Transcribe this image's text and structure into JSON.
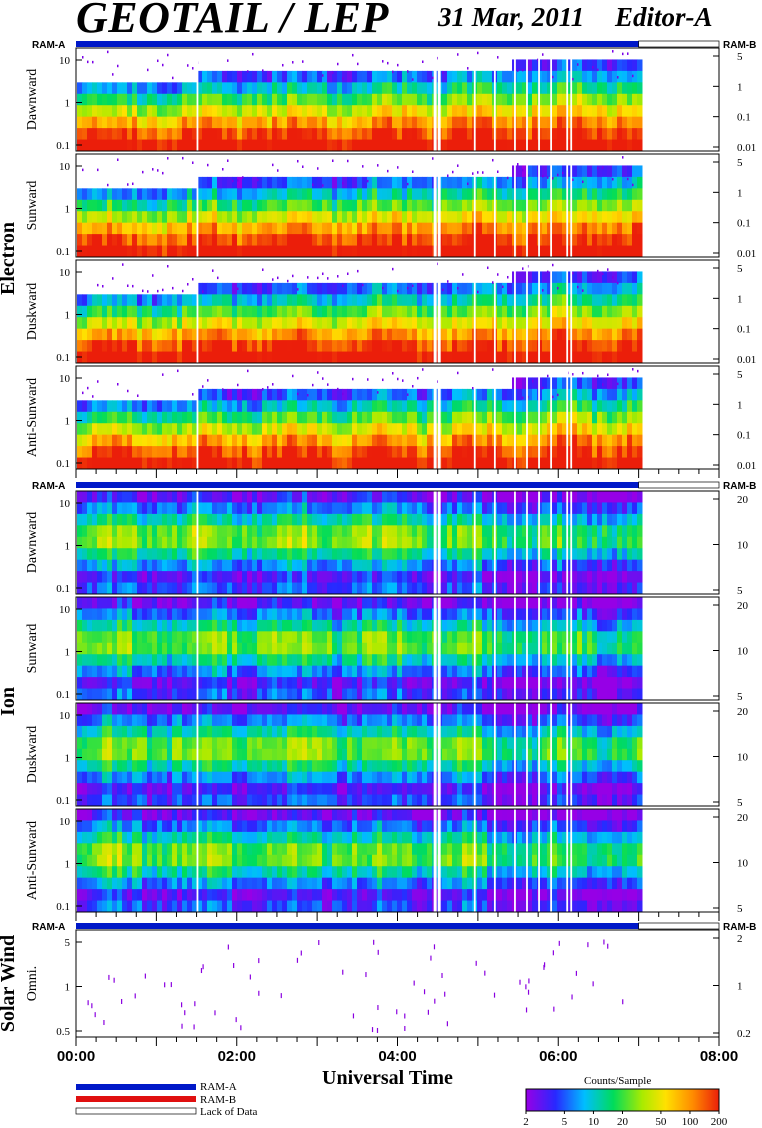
{
  "header": {
    "title": "GEOTAIL / LEP",
    "date": "31 Mar, 2011",
    "editor": "Editor-A"
  },
  "xaxis": {
    "label": "Universal Time",
    "ticks": [
      "00:00",
      "02:00",
      "04:00",
      "06:00",
      "08:00"
    ],
    "range_hours": [
      0,
      8
    ],
    "data_end_hour": 7.0
  },
  "legend": {
    "items": [
      {
        "label": "RAM-A",
        "color": "#0018c8"
      },
      {
        "label": "RAM-B",
        "color": "#e01010"
      },
      {
        "label": "Lack of Data",
        "color": "#ffffff"
      }
    ]
  },
  "colorbar": {
    "title": "Counts/Sample",
    "ticks": [
      "2",
      "5",
      "10",
      "20",
      "50",
      "100",
      "200"
    ]
  },
  "chart_data": [
    {
      "type": "heatmap",
      "group": "Electron",
      "ram_left": "RAM-A",
      "ram_right": "RAM-B",
      "panels": [
        {
          "name": "Dawnward",
          "left_ticks": [
            "10",
            "1",
            "0.1"
          ],
          "right_ticks": [
            "5",
            "1",
            "0.1",
            "0.01"
          ]
        },
        {
          "name": "Sunward",
          "left_ticks": [
            "10",
            "1",
            "0.1"
          ],
          "right_ticks": [
            "5",
            "1",
            "0.1",
            "0.01"
          ]
        },
        {
          "name": "Duskward",
          "left_ticks": [
            "10",
            "1",
            "0.1"
          ],
          "right_ticks": [
            "5",
            "1",
            "0.1",
            "0.01"
          ]
        },
        {
          "name": "Anti-Sunward",
          "left_ticks": [
            "10",
            "1",
            "0.1"
          ],
          "right_ticks": [
            "5",
            "1",
            "0.1",
            "0.01"
          ]
        }
      ],
      "data_gaps_hours": [
        1.5,
        4.45,
        4.5,
        4.95,
        5.2,
        5.45,
        5.6,
        5.75,
        5.9,
        6.1,
        6.15
      ]
    },
    {
      "type": "heatmap",
      "group": "Ion",
      "ram_left": "RAM-A",
      "ram_right": "RAM-B",
      "panels": [
        {
          "name": "Dawnward",
          "left_ticks": [
            "10",
            "1",
            "0.1"
          ],
          "right_ticks": [
            "20",
            "10",
            "5"
          ]
        },
        {
          "name": "Sunward",
          "left_ticks": [
            "10",
            "1",
            "0.1"
          ],
          "right_ticks": [
            "20",
            "10",
            "5"
          ]
        },
        {
          "name": "Duskward",
          "left_ticks": [
            "10",
            "1",
            "0.1"
          ],
          "right_ticks": [
            "20",
            "10",
            "5"
          ]
        },
        {
          "name": "Anti-Sunward",
          "left_ticks": [
            "10",
            "1",
            "0.1"
          ],
          "right_ticks": [
            "20",
            "10",
            "5"
          ]
        }
      ]
    },
    {
      "type": "heatmap",
      "group": "Solar Wind",
      "ram_left": "RAM-A",
      "ram_right": "RAM-B",
      "panels": [
        {
          "name": "Omni.",
          "left_ticks": [
            "5",
            "1",
            "0.5"
          ],
          "right_ticks": [
            "2",
            "1",
            "0.2"
          ]
        }
      ]
    }
  ]
}
